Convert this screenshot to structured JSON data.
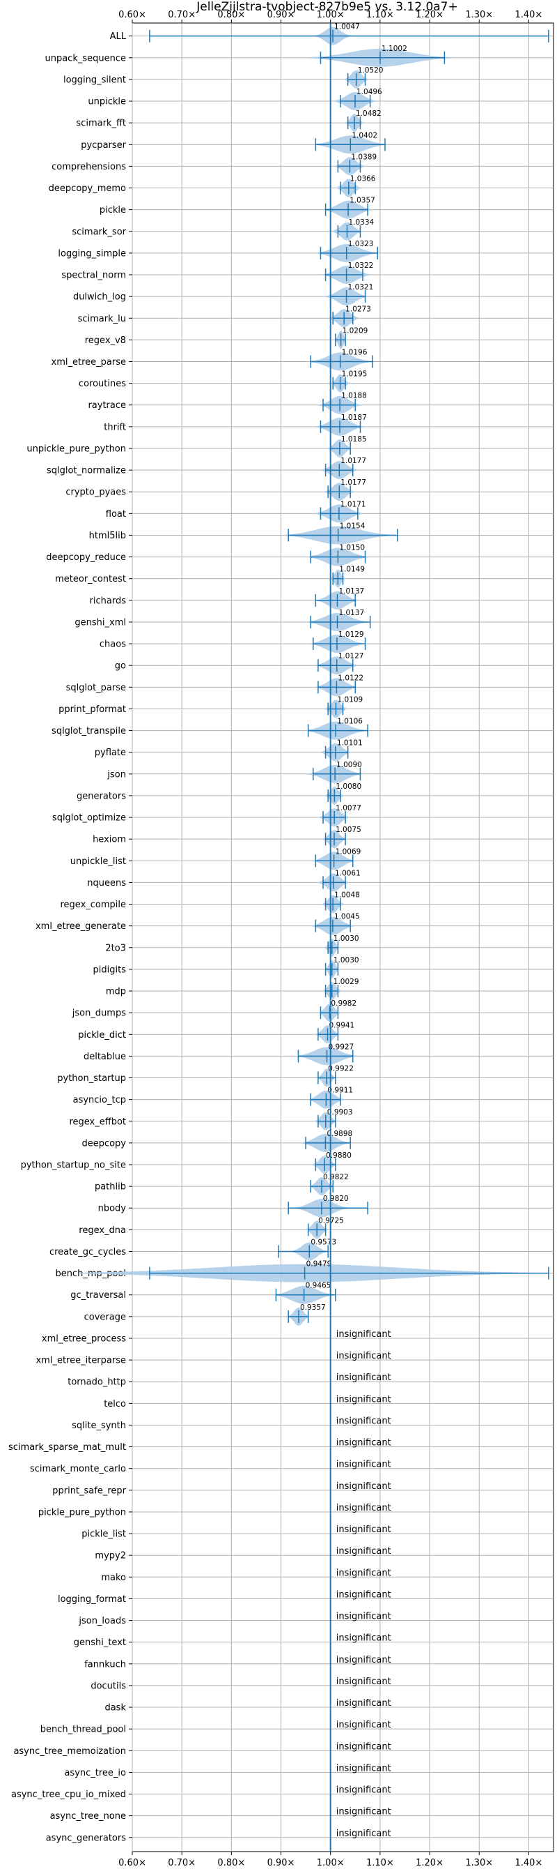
{
  "chart_data": {
    "type": "violin",
    "title": "JelleZijlstra-tvobject-827b9e5 vs. 3.12.0a7+",
    "xlabel": "",
    "ylabel": "",
    "xlim": [
      0.6,
      1.45
    ],
    "xticks": [
      0.6,
      0.7,
      0.8,
      0.9,
      1.0,
      1.1,
      1.2,
      1.3,
      1.4
    ],
    "xtick_labels": [
      "0.60×",
      "0.70×",
      "0.80×",
      "0.90×",
      "1.00×",
      "1.10×",
      "1.20×",
      "1.30×",
      "1.40×"
    ],
    "reference_line": 1.0,
    "grid": true,
    "colors": {
      "violin": "#aecde8",
      "line": "#1f77b4",
      "ref": "#1f77b4",
      "grid": "#b0b0b0"
    },
    "insignificant_label": "insignificant",
    "benchmarks": [
      {
        "name": "ALL",
        "median": 1.0047,
        "label": "1.0047",
        "min": 0.635,
        "max": 1.44,
        "spread": 0.03
      },
      {
        "name": "unpack_sequence",
        "median": 1.1002,
        "label": "1.1002",
        "min": 0.98,
        "max": 1.23,
        "spread": 0.12
      },
      {
        "name": "logging_silent",
        "median": 1.052,
        "label": "1.0520",
        "min": 1.035,
        "max": 1.07,
        "spread": 0.02
      },
      {
        "name": "unpickle",
        "median": 1.0496,
        "label": "1.0496",
        "min": 1.02,
        "max": 1.08,
        "spread": 0.035
      },
      {
        "name": "scimark_fft",
        "median": 1.0482,
        "label": "1.0482",
        "min": 1.035,
        "max": 1.06,
        "spread": 0.015
      },
      {
        "name": "pycparser",
        "median": 1.0402,
        "label": "1.0402",
        "min": 0.97,
        "max": 1.11,
        "spread": 0.06
      },
      {
        "name": "comprehensions",
        "median": 1.0389,
        "label": "1.0389",
        "min": 1.015,
        "max": 1.06,
        "spread": 0.025
      },
      {
        "name": "deepcopy_memo",
        "median": 1.0366,
        "label": "1.0366",
        "min": 1.02,
        "max": 1.05,
        "spread": 0.02
      },
      {
        "name": "pickle",
        "median": 1.0357,
        "label": "1.0357",
        "min": 0.99,
        "max": 1.075,
        "spread": 0.04
      },
      {
        "name": "scimark_sor",
        "median": 1.0334,
        "label": "1.0334",
        "min": 1.015,
        "max": 1.06,
        "spread": 0.025
      },
      {
        "name": "logging_simple",
        "median": 1.0323,
        "label": "1.0323",
        "min": 0.98,
        "max": 1.095,
        "spread": 0.05
      },
      {
        "name": "spectral_norm",
        "median": 1.0322,
        "label": "1.0322",
        "min": 0.99,
        "max": 1.065,
        "spread": 0.04
      },
      {
        "name": "dulwich_log",
        "median": 1.0321,
        "label": "1.0321",
        "min": 1.0,
        "max": 1.07,
        "spread": 0.035
      },
      {
        "name": "scimark_lu",
        "median": 1.0273,
        "label": "1.0273",
        "min": 1.005,
        "max": 1.045,
        "spread": 0.025
      },
      {
        "name": "regex_v8",
        "median": 1.0209,
        "label": "1.0209",
        "min": 1.01,
        "max": 1.03,
        "spread": 0.01
      },
      {
        "name": "xml_etree_parse",
        "median": 1.0196,
        "label": "1.0196",
        "min": 0.96,
        "max": 1.085,
        "spread": 0.05
      },
      {
        "name": "coroutines",
        "median": 1.0195,
        "label": "1.0195",
        "min": 1.005,
        "max": 1.03,
        "spread": 0.015
      },
      {
        "name": "raytrace",
        "median": 1.0188,
        "label": "1.0188",
        "min": 0.985,
        "max": 1.05,
        "spread": 0.035
      },
      {
        "name": "thrift",
        "median": 1.0187,
        "label": "1.0187",
        "min": 0.98,
        "max": 1.06,
        "spread": 0.04
      },
      {
        "name": "unpickle_pure_python",
        "median": 1.0185,
        "label": "1.0185",
        "min": 1.0,
        "max": 1.04,
        "spread": 0.02
      },
      {
        "name": "sqlglot_normalize",
        "median": 1.0177,
        "label": "1.0177",
        "min": 0.99,
        "max": 1.045,
        "spread": 0.03
      },
      {
        "name": "crypto_pyaes",
        "median": 1.0177,
        "label": "1.0177",
        "min": 0.995,
        "max": 1.04,
        "spread": 0.025
      },
      {
        "name": "float",
        "median": 1.0171,
        "label": "1.0171",
        "min": 0.98,
        "max": 1.055,
        "spread": 0.04
      },
      {
        "name": "html5lib",
        "median": 1.0154,
        "label": "1.0154",
        "min": 0.915,
        "max": 1.135,
        "spread": 0.09
      },
      {
        "name": "deepcopy_reduce",
        "median": 1.015,
        "label": "1.0150",
        "min": 0.96,
        "max": 1.07,
        "spread": 0.05
      },
      {
        "name": "meteor_contest",
        "median": 1.0149,
        "label": "1.0149",
        "min": 1.005,
        "max": 1.025,
        "spread": 0.012
      },
      {
        "name": "richards",
        "median": 1.0137,
        "label": "1.0137",
        "min": 0.97,
        "max": 1.05,
        "spread": 0.035
      },
      {
        "name": "genshi_xml",
        "median": 1.0137,
        "label": "1.0137",
        "min": 0.96,
        "max": 1.08,
        "spread": 0.05
      },
      {
        "name": "chaos",
        "median": 1.0129,
        "label": "1.0129",
        "min": 0.965,
        "max": 1.07,
        "spread": 0.045
      },
      {
        "name": "go",
        "median": 1.0127,
        "label": "1.0127",
        "min": 0.975,
        "max": 1.045,
        "spread": 0.035
      },
      {
        "name": "sqlglot_parse",
        "median": 1.0122,
        "label": "1.0122",
        "min": 0.975,
        "max": 1.05,
        "spread": 0.035
      },
      {
        "name": "pprint_pformat",
        "median": 1.0109,
        "label": "1.0109",
        "min": 0.995,
        "max": 1.025,
        "spread": 0.018
      },
      {
        "name": "sqlglot_transpile",
        "median": 1.0106,
        "label": "1.0106",
        "min": 0.955,
        "max": 1.075,
        "spread": 0.05
      },
      {
        "name": "pyflate",
        "median": 1.0101,
        "label": "1.0101",
        "min": 0.99,
        "max": 1.035,
        "spread": 0.025
      },
      {
        "name": "json",
        "median": 1.009,
        "label": "1.0090",
        "min": 0.965,
        "max": 1.06,
        "spread": 0.045
      },
      {
        "name": "generators",
        "median": 1.008,
        "label": "1.0080",
        "min": 0.995,
        "max": 1.02,
        "spread": 0.015
      },
      {
        "name": "sqlglot_optimize",
        "median": 1.0077,
        "label": "1.0077",
        "min": 0.985,
        "max": 1.03,
        "spread": 0.025
      },
      {
        "name": "hexiom",
        "median": 1.0075,
        "label": "1.0075",
        "min": 0.99,
        "max": 1.03,
        "spread": 0.02
      },
      {
        "name": "unpickle_list",
        "median": 1.0069,
        "label": "1.0069",
        "min": 0.97,
        "max": 1.045,
        "spread": 0.035
      },
      {
        "name": "nqueens",
        "median": 1.0061,
        "label": "1.0061",
        "min": 0.985,
        "max": 1.03,
        "spread": 0.025
      },
      {
        "name": "regex_compile",
        "median": 1.0048,
        "label": "1.0048",
        "min": 0.99,
        "max": 1.02,
        "spread": 0.018
      },
      {
        "name": "xml_etree_generate",
        "median": 1.0045,
        "label": "1.0045",
        "min": 0.97,
        "max": 1.04,
        "spread": 0.035
      },
      {
        "name": "2to3",
        "median": 1.003,
        "label": "1.0030",
        "min": 0.995,
        "max": 1.015,
        "spread": 0.012
      },
      {
        "name": "pidigits",
        "median": 1.003,
        "label": "1.0030",
        "min": 0.99,
        "max": 1.015,
        "spread": 0.012
      },
      {
        "name": "mdp",
        "median": 1.0029,
        "label": "1.0029",
        "min": 0.99,
        "max": 1.015,
        "spread": 0.015
      },
      {
        "name": "json_dumps",
        "median": 0.9982,
        "label": "0.9982",
        "min": 0.98,
        "max": 1.015,
        "spread": 0.018
      },
      {
        "name": "pickle_dict",
        "median": 0.9941,
        "label": "0.9941",
        "min": 0.975,
        "max": 1.015,
        "spread": 0.02
      },
      {
        "name": "deltablue",
        "median": 0.9927,
        "label": "0.9927",
        "min": 0.935,
        "max": 1.045,
        "spread": 0.05
      },
      {
        "name": "python_startup",
        "median": 0.9922,
        "label": "0.9922",
        "min": 0.975,
        "max": 1.01,
        "spread": 0.015
      },
      {
        "name": "asyncio_tcp",
        "median": 0.9911,
        "label": "0.9911",
        "min": 0.96,
        "max": 1.02,
        "spread": 0.03
      },
      {
        "name": "regex_effbot",
        "median": 0.9903,
        "label": "0.9903",
        "min": 0.975,
        "max": 1.01,
        "spread": 0.018
      },
      {
        "name": "deepcopy",
        "median": 0.9898,
        "label": "0.9898",
        "min": 0.95,
        "max": 1.04,
        "spread": 0.04
      },
      {
        "name": "python_startup_no_site",
        "median": 0.988,
        "label": "0.9880",
        "min": 0.97,
        "max": 1.01,
        "spread": 0.02
      },
      {
        "name": "pathlib",
        "median": 0.9822,
        "label": "0.9822",
        "min": 0.96,
        "max": 1.005,
        "spread": 0.02
      },
      {
        "name": "nbody",
        "median": 0.982,
        "label": "0.9820",
        "min": 0.915,
        "max": 1.075,
        "spread": 0.045
      },
      {
        "name": "regex_dna",
        "median": 0.9725,
        "label": "0.9725",
        "min": 0.955,
        "max": 0.99,
        "spread": 0.018
      },
      {
        "name": "create_gc_cycles",
        "median": 0.9573,
        "label": "0.9573",
        "min": 0.895,
        "max": 0.995,
        "spread": 0.03
      },
      {
        "name": "bench_mp_pool",
        "median": 0.9479,
        "label": "0.9479",
        "min": 0.635,
        "max": 1.44,
        "spread": 0.38
      },
      {
        "name": "gc_traversal",
        "median": 0.9465,
        "label": "0.9465",
        "min": 0.89,
        "max": 1.01,
        "spread": 0.05
      },
      {
        "name": "coverage",
        "median": 0.9357,
        "label": "0.9357",
        "min": 0.915,
        "max": 0.955,
        "spread": 0.018
      },
      {
        "name": "xml_etree_process",
        "insignificant": true
      },
      {
        "name": "xml_etree_iterparse",
        "insignificant": true
      },
      {
        "name": "tornado_http",
        "insignificant": true
      },
      {
        "name": "telco",
        "insignificant": true
      },
      {
        "name": "sqlite_synth",
        "insignificant": true
      },
      {
        "name": "scimark_sparse_mat_mult",
        "insignificant": true
      },
      {
        "name": "scimark_monte_carlo",
        "insignificant": true
      },
      {
        "name": "pprint_safe_repr",
        "insignificant": true
      },
      {
        "name": "pickle_pure_python",
        "insignificant": true
      },
      {
        "name": "pickle_list",
        "insignificant": true
      },
      {
        "name": "mypy2",
        "insignificant": true
      },
      {
        "name": "mako",
        "insignificant": true
      },
      {
        "name": "logging_format",
        "insignificant": true
      },
      {
        "name": "json_loads",
        "insignificant": true
      },
      {
        "name": "genshi_text",
        "insignificant": true
      },
      {
        "name": "fannkuch",
        "insignificant": true
      },
      {
        "name": "docutils",
        "insignificant": true
      },
      {
        "name": "dask",
        "insignificant": true
      },
      {
        "name": "bench_thread_pool",
        "insignificant": true
      },
      {
        "name": "async_tree_memoization",
        "insignificant": true
      },
      {
        "name": "async_tree_io",
        "insignificant": true
      },
      {
        "name": "async_tree_cpu_io_mixed",
        "insignificant": true
      },
      {
        "name": "async_tree_none",
        "insignificant": true
      },
      {
        "name": "async_generators",
        "insignificant": true
      }
    ]
  }
}
